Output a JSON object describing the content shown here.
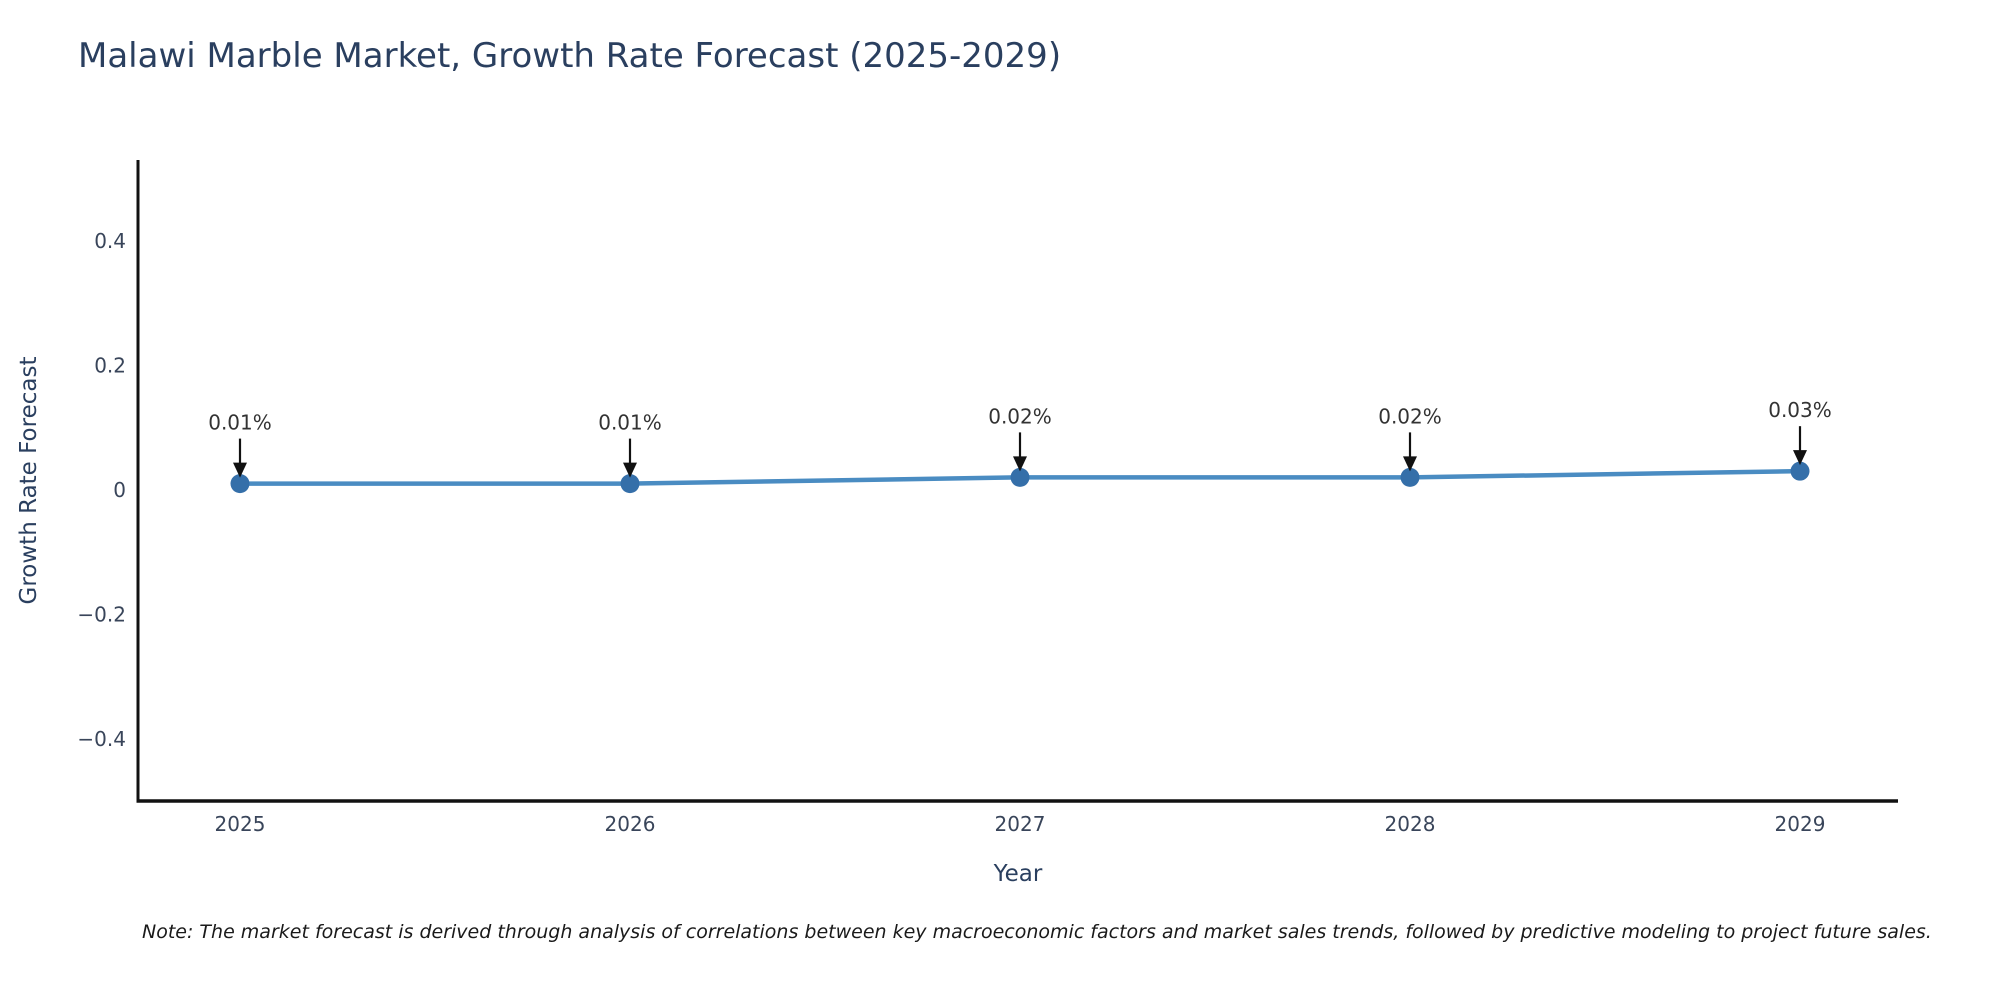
{
  "page": {
    "title": "Malawi Marble Market, Growth Rate Forecast (2025-2029)",
    "note": "Note: The market forecast is derived through analysis of correlations between key macroeconomic factors and market sales trends, followed by predictive modeling to project future sales."
  },
  "chart_data": {
    "type": "line",
    "title": "Malawi Marble Market, Growth Rate Forecast (2025-2029)",
    "xlabel": "Year",
    "ylabel": "Growth Rate Forecast",
    "categories": [
      "2025",
      "2026",
      "2027",
      "2028",
      "2029"
    ],
    "series": [
      {
        "name": "Growth Rate Forecast",
        "values": [
          0.01,
          0.01,
          0.02,
          0.02,
          0.03
        ],
        "point_labels": [
          "0.01%",
          "0.01%",
          "0.02%",
          "0.02%",
          "0.03%"
        ]
      }
    ],
    "ylim": [
      -0.5,
      0.53
    ],
    "yticks": [
      {
        "value": 0.4,
        "label": "0.4"
      },
      {
        "value": 0.2,
        "label": "0.2"
      },
      {
        "value": 0,
        "label": "0"
      },
      {
        "value": -0.2,
        "label": "−0.2"
      },
      {
        "value": -0.4,
        "label": "−0.4"
      }
    ],
    "grid": false,
    "legend_position": "none",
    "annotation_style": "value label with downward arrow above each data point",
    "colors": {
      "line": "#4a8cc2",
      "marker": "#356fa9",
      "axis": "#111111",
      "tick_text": "#39455a",
      "title_text": "#2a3f5f",
      "annotation_text": "#333333",
      "arrow": "#111111",
      "note_text": "#1a1a1a",
      "background": "#ffffff"
    }
  }
}
